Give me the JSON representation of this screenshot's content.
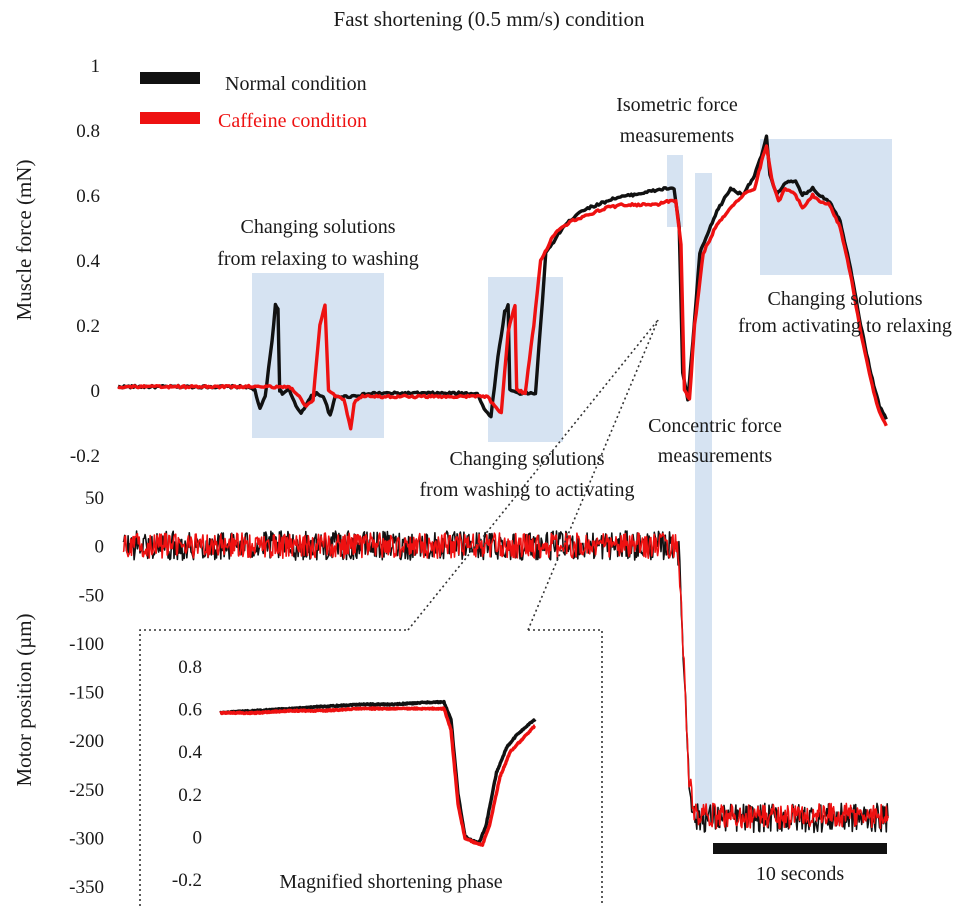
{
  "title": "Fast shortening (0.5 mm/s) condition",
  "colors": {
    "normal": "#111111",
    "caffeine": "#ee1111",
    "highlight": "#d6e3f2",
    "text": "#1a1a1a"
  },
  "legend": [
    {
      "label": "Normal condition",
      "color": "#111111"
    },
    {
      "label": "Caffeine condition",
      "color": "#ee1111"
    }
  ],
  "scale_bar": "10 seconds",
  "annotations": {
    "relax_to_wash": [
      "Changing solutions",
      "from relaxing to washing"
    ],
    "wash_to_activate": [
      "Changing solutions",
      "from washing to activating"
    ],
    "isometric": [
      "Isometric force",
      "measurements"
    ],
    "concentric": [
      "Concentric force",
      "measurements"
    ],
    "activate_to_relax": [
      "Changing solutions",
      "from activating to relaxing"
    ],
    "magnified": "Magnified shortening phase"
  },
  "chart_data": [
    {
      "type": "line",
      "panel": "force",
      "ylabel": "Muscle force (mN)",
      "ylim": [
        -0.2,
        1
      ],
      "yticks": [
        "1",
        "0.8",
        "0.6",
        "0.4",
        "0.2",
        "0",
        "-0.2"
      ],
      "xlabel": "",
      "time_unit": "s",
      "series": [
        {
          "name": "Normal condition",
          "color": "#111111",
          "points": [
            [
              0,
              0.01
            ],
            [
              7.5,
              0.01
            ],
            [
              8.0,
              0.0
            ],
            [
              8.3,
              -0.06
            ],
            [
              8.6,
              -0.02
            ],
            [
              9.0,
              0.15
            ],
            [
              9.2,
              0.26
            ],
            [
              9.35,
              0.25
            ],
            [
              9.45,
              0.0
            ],
            [
              9.6,
              -0.01
            ],
            [
              10.0,
              0.0
            ],
            [
              10.4,
              -0.05
            ],
            [
              10.7,
              -0.07
            ],
            [
              11.3,
              -0.02
            ],
            [
              11.6,
              -0.01
            ],
            [
              12.0,
              -0.02
            ],
            [
              12.4,
              -0.08
            ],
            [
              12.7,
              -0.02
            ],
            [
              13.5,
              -0.02
            ],
            [
              15.0,
              -0.01
            ],
            [
              20.0,
              -0.01
            ],
            [
              21.0,
              -0.01
            ],
            [
              21.4,
              -0.06
            ],
            [
              21.8,
              -0.08
            ],
            [
              22.2,
              0.1
            ],
            [
              22.6,
              0.24
            ],
            [
              22.8,
              0.26
            ],
            [
              22.9,
              0.0
            ],
            [
              23.5,
              -0.01
            ],
            [
              24.4,
              -0.01
            ],
            [
              24.7,
              0.2
            ],
            [
              25.0,
              0.42
            ],
            [
              26.0,
              0.5
            ],
            [
              27.0,
              0.55
            ],
            [
              28.0,
              0.57
            ],
            [
              29.0,
              0.59
            ],
            [
              30.0,
              0.6
            ],
            [
              31.0,
              0.61
            ],
            [
              32.0,
              0.62
            ],
            [
              32.5,
              0.62
            ],
            [
              32.8,
              0.5
            ],
            [
              33.0,
              0.05
            ],
            [
              33.3,
              -0.03
            ],
            [
              33.6,
              0.15
            ],
            [
              34.0,
              0.42
            ],
            [
              35.0,
              0.55
            ],
            [
              35.8,
              0.62
            ],
            [
              36.5,
              0.6
            ],
            [
              37.2,
              0.66
            ],
            [
              37.6,
              0.72
            ],
            [
              37.9,
              0.78
            ],
            [
              38.1,
              0.66
            ],
            [
              38.5,
              0.6
            ],
            [
              39.0,
              0.64
            ],
            [
              39.6,
              0.64
            ],
            [
              40.0,
              0.6
            ],
            [
              40.6,
              0.62
            ],
            [
              41.0,
              0.6
            ],
            [
              41.6,
              0.58
            ],
            [
              42.2,
              0.52
            ],
            [
              42.8,
              0.38
            ],
            [
              43.4,
              0.2
            ],
            [
              44.0,
              0.05
            ],
            [
              44.5,
              -0.05
            ],
            [
              44.9,
              -0.09
            ]
          ]
        },
        {
          "name": "Caffeine condition",
          "color": "#ee1111",
          "points": [
            [
              0,
              0.01
            ],
            [
              8.0,
              0.01
            ],
            [
              10.0,
              0.01
            ],
            [
              10.6,
              -0.02
            ],
            [
              11.0,
              -0.05
            ],
            [
              11.4,
              -0.03
            ],
            [
              11.8,
              0.2
            ],
            [
              12.1,
              0.26
            ],
            [
              12.3,
              0.0
            ],
            [
              12.7,
              -0.02
            ],
            [
              13.2,
              -0.03
            ],
            [
              13.6,
              -0.12
            ],
            [
              13.8,
              -0.04
            ],
            [
              14.2,
              -0.02
            ],
            [
              16.0,
              -0.02
            ],
            [
              20.0,
              -0.02
            ],
            [
              21.6,
              -0.02
            ],
            [
              22.0,
              -0.05
            ],
            [
              22.4,
              -0.07
            ],
            [
              22.8,
              0.18
            ],
            [
              23.2,
              0.26
            ],
            [
              23.3,
              0.0
            ],
            [
              23.8,
              -0.01
            ],
            [
              24.3,
              0.2
            ],
            [
              24.7,
              0.4
            ],
            [
              25.5,
              0.48
            ],
            [
              26.5,
              0.52
            ],
            [
              27.5,
              0.54
            ],
            [
              28.5,
              0.56
            ],
            [
              29.5,
              0.57
            ],
            [
              30.5,
              0.57
            ],
            [
              31.5,
              0.57
            ],
            [
              32.0,
              0.58
            ],
            [
              32.6,
              0.58
            ],
            [
              32.9,
              0.45
            ],
            [
              33.1,
              0.0
            ],
            [
              33.4,
              -0.03
            ],
            [
              33.7,
              0.2
            ],
            [
              34.2,
              0.42
            ],
            [
              35.0,
              0.51
            ],
            [
              35.8,
              0.56
            ],
            [
              36.5,
              0.6
            ],
            [
              37.2,
              0.62
            ],
            [
              37.7,
              0.72
            ],
            [
              37.9,
              0.75
            ],
            [
              38.2,
              0.65
            ],
            [
              38.6,
              0.58
            ],
            [
              39.0,
              0.62
            ],
            [
              39.6,
              0.6
            ],
            [
              40.0,
              0.56
            ],
            [
              40.6,
              0.6
            ],
            [
              41.0,
              0.58
            ],
            [
              41.6,
              0.57
            ],
            [
              42.2,
              0.5
            ],
            [
              42.8,
              0.36
            ],
            [
              43.4,
              0.18
            ],
            [
              44.0,
              0.03
            ],
            [
              44.5,
              -0.07
            ],
            [
              44.9,
              -0.11
            ]
          ]
        }
      ]
    },
    {
      "type": "line",
      "panel": "motor",
      "ylabel": "Motor position (µm)",
      "ylim": [
        -350,
        50
      ],
      "yticks": [
        "50",
        "0",
        "-50",
        "-100",
        "-150",
        "-200",
        "-250",
        "-300",
        "-350"
      ],
      "xlabel": "",
      "series": [
        {
          "name": "Normal condition",
          "color": "#111111",
          "points": [
            [
              0,
              0
            ],
            [
              32.6,
              0
            ],
            [
              32.7,
              -10
            ],
            [
              33.3,
              -240
            ],
            [
              33.6,
              -280
            ],
            [
              45,
              -280
            ]
          ],
          "noise": 15
        },
        {
          "name": "Caffeine condition",
          "color": "#ee1111",
          "points": [
            [
              0,
              0
            ],
            [
              32.6,
              0
            ],
            [
              32.7,
              -10
            ],
            [
              33.3,
              -240
            ],
            [
              33.6,
              -278
            ],
            [
              45,
              -278
            ]
          ],
          "noise": 13
        }
      ]
    },
    {
      "type": "line",
      "panel": "magnified",
      "title": "Magnified shortening phase",
      "ylim": [
        -0.2,
        0.8
      ],
      "yticks": [
        "0.8",
        "0.6",
        "0.4",
        "0.2",
        "0",
        "-0.2"
      ],
      "series": [
        {
          "name": "Normal condition",
          "color": "#111111",
          "points": [
            [
              0,
              0.58
            ],
            [
              1,
              0.59
            ],
            [
              2,
              0.6
            ],
            [
              3,
              0.61
            ],
            [
              4,
              0.62
            ],
            [
              5,
              0.62
            ],
            [
              6,
              0.63
            ],
            [
              6.4,
              0.63
            ],
            [
              6.6,
              0.55
            ],
            [
              6.8,
              0.2
            ],
            [
              7.0,
              0.0
            ],
            [
              7.2,
              -0.02
            ],
            [
              7.4,
              -0.03
            ],
            [
              7.6,
              0.05
            ],
            [
              7.9,
              0.3
            ],
            [
              8.2,
              0.42
            ],
            [
              8.5,
              0.48
            ],
            [
              9.0,
              0.55
            ]
          ]
        },
        {
          "name": "Caffeine condition",
          "color": "#ee1111",
          "points": [
            [
              0,
              0.58
            ],
            [
              1,
              0.58
            ],
            [
              2,
              0.59
            ],
            [
              3,
              0.59
            ],
            [
              4,
              0.6
            ],
            [
              5,
              0.6
            ],
            [
              6,
              0.6
            ],
            [
              6.4,
              0.6
            ],
            [
              6.6,
              0.5
            ],
            [
              6.8,
              0.15
            ],
            [
              7.0,
              -0.01
            ],
            [
              7.3,
              -0.03
            ],
            [
              7.5,
              -0.04
            ],
            [
              7.7,
              0.05
            ],
            [
              8.0,
              0.28
            ],
            [
              8.3,
              0.4
            ],
            [
              8.6,
              0.45
            ],
            [
              9.0,
              0.52
            ]
          ]
        }
      ]
    }
  ]
}
